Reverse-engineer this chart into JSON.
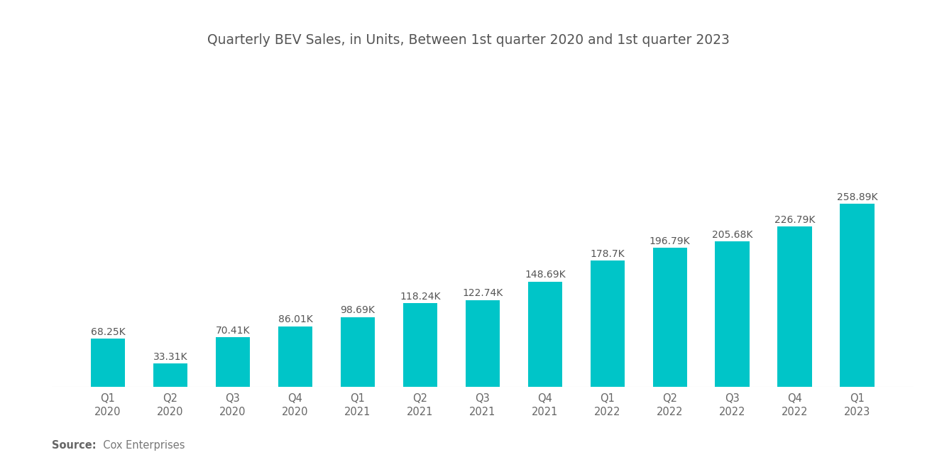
{
  "title": "Quarterly BEV Sales, in Units, Between 1st quarter 2020 and 1st quarter 2023",
  "categories": [
    "Q1\n2020",
    "Q2\n2020",
    "Q3\n2020",
    "Q4\n2020",
    "Q1\n2021",
    "Q2\n2021",
    "Q3\n2021",
    "Q4\n2021",
    "Q1\n2022",
    "Q2\n2022",
    "Q3\n2022",
    "Q4\n2022",
    "Q1\n2023"
  ],
  "values": [
    68250,
    33310,
    70410,
    86010,
    98690,
    118240,
    122740,
    148690,
    178700,
    196790,
    205680,
    226790,
    258890
  ],
  "labels": [
    "68.25K",
    "33.31K",
    "70.41K",
    "86.01K",
    "98.69K",
    "118.24K",
    "122.74K",
    "148.69K",
    "178.7K",
    "196.79K",
    "205.68K",
    "226.79K",
    "258.89K"
  ],
  "bar_color": "#00C5C8",
  "background_color": "#ffffff",
  "source_bold": "Source:",
  "source_normal": "  Cox Enterprises",
  "title_fontsize": 13.5,
  "label_fontsize": 10,
  "tick_fontsize": 10.5,
  "source_fontsize": 10.5,
  "ylim_max": 360000,
  "bar_width": 0.55
}
